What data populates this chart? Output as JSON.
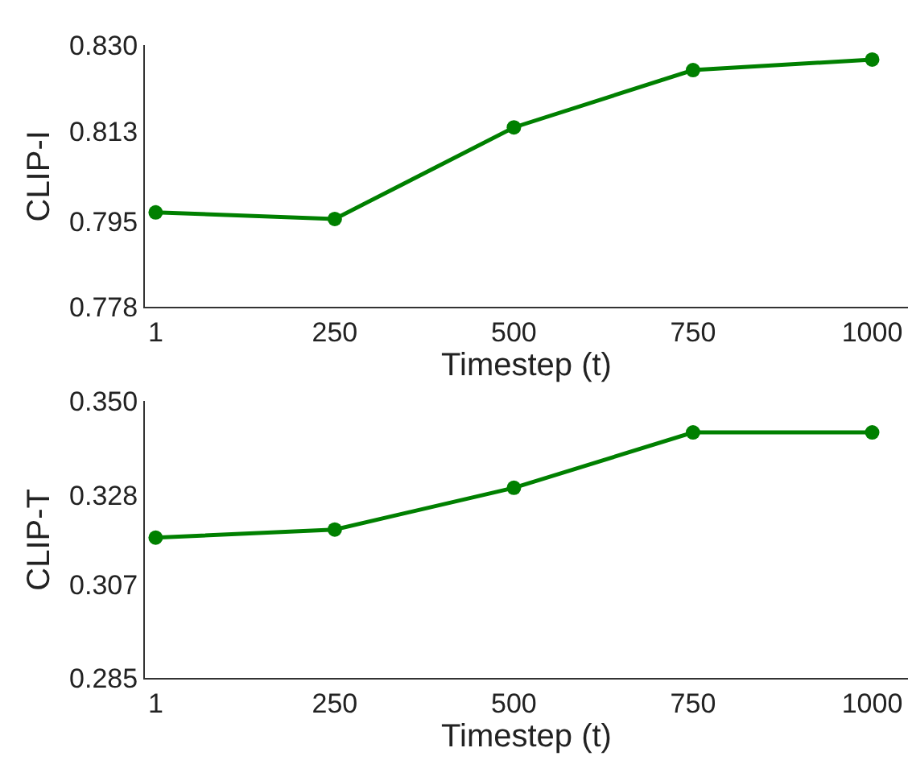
{
  "chart_data": [
    {
      "type": "line",
      "xlabel": "Timestep (t)",
      "ylabel": "CLIP-I",
      "categories": [
        "1",
        "250",
        "500",
        "750",
        "1000"
      ],
      "series": [
        {
          "color": "#008000",
          "values": [
            0.7968,
            0.7955,
            0.8137,
            0.8251,
            0.8272
          ]
        }
      ],
      "ylim": [
        0.778,
        0.83
      ],
      "yticks": [
        0.778,
        0.795,
        0.813,
        {
          "value": 0.83,
          "label": "0.830"
        }
      ],
      "marker": "circle",
      "line_style": "solid"
    },
    {
      "type": "line",
      "xlabel": "Timestep (t)",
      "ylabel": "CLIP-T",
      "categories": [
        "1",
        "250",
        "500",
        "750",
        "1000"
      ],
      "series": [
        {
          "color": "#008000",
          "values": [
            0.318,
            0.3199,
            0.3297,
            0.3427,
            0.3427
          ]
        }
      ],
      "ylim": [
        0.285,
        0.35
      ],
      "yticks": [
        0.285,
        0.307,
        0.328,
        {
          "value": 0.35,
          "label": "0.350"
        }
      ],
      "marker": "circle",
      "line_style": "solid"
    }
  ]
}
